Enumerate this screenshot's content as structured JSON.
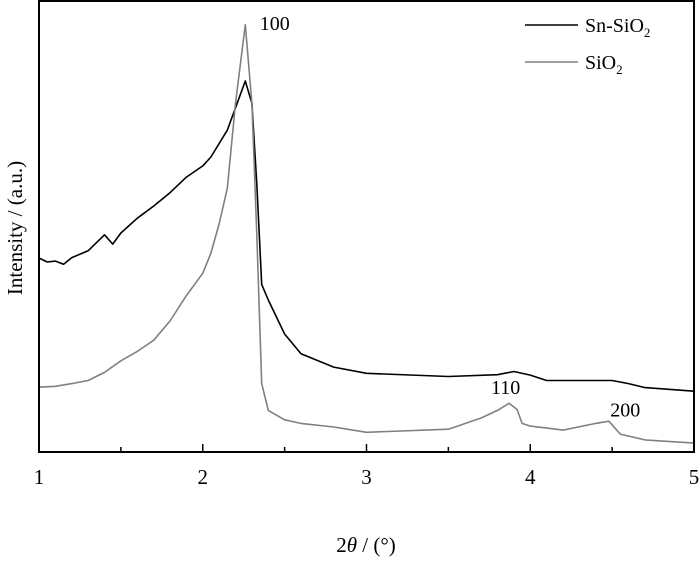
{
  "chart_data": {
    "type": "line",
    "xlabel_prefix": "2",
    "xlabel_symbol": "θ",
    "xlabel_suffix": " / (°)",
    "ylabel": "Intensity / (a.u.)",
    "xlim": [
      1,
      5
    ],
    "ylim": [
      0,
      100
    ],
    "xticks": [
      1,
      2,
      3,
      4,
      5
    ],
    "xticks_minor": [
      1.5,
      2.5,
      3.5,
      4.5
    ],
    "yticks": [],
    "grid": false,
    "legend_position": "top-right",
    "series": [
      {
        "name": "Sn-SiO2",
        "name_main": "Sn-SiO",
        "name_sub": "2",
        "color": "#000000",
        "x": [
          1.0,
          1.05,
          1.1,
          1.15,
          1.2,
          1.3,
          1.4,
          1.45,
          1.5,
          1.6,
          1.7,
          1.8,
          1.9,
          2.0,
          2.05,
          2.1,
          2.15,
          2.2,
          2.26,
          2.3,
          2.33,
          2.36,
          2.4,
          2.5,
          2.6,
          2.8,
          3.0,
          3.5,
          3.8,
          3.9,
          4.0,
          4.1,
          4.3,
          4.5,
          4.6,
          4.7,
          5.0
        ],
        "y": [
          43.4,
          42.5,
          42.7,
          42,
          43.5,
          45,
          48.6,
          46.5,
          49,
          52.3,
          55,
          58,
          61.5,
          64,
          66,
          69,
          72,
          77,
          83,
          78,
          60,
          37.5,
          34,
          26.4,
          22,
          19,
          17.6,
          16.9,
          17.3,
          18,
          17.2,
          16,
          16,
          16,
          15.3,
          14.4,
          13.6
        ]
      },
      {
        "name": "SiO2",
        "name_main": "SiO",
        "name_sub": "2",
        "color": "#808080",
        "x": [
          1.0,
          1.1,
          1.2,
          1.3,
          1.4,
          1.5,
          1.6,
          1.7,
          1.8,
          1.9,
          2.0,
          2.05,
          2.1,
          2.15,
          2.2,
          2.26,
          2.3,
          2.33,
          2.36,
          2.4,
          2.5,
          2.6,
          2.8,
          3.0,
          3.5,
          3.7,
          3.8,
          3.87,
          3.92,
          3.95,
          4.0,
          4.2,
          4.4,
          4.48,
          4.55,
          4.7,
          5.0
        ],
        "y": [
          14.5,
          14.7,
          15.3,
          16,
          17.8,
          20.4,
          22.5,
          25,
          29.3,
          35,
          40,
          44.5,
          51,
          59,
          78,
          95.6,
          78,
          48.6,
          15.3,
          9.3,
          7.2,
          6.4,
          5.6,
          4.4,
          5.1,
          7.6,
          9.3,
          10.9,
          9.5,
          6.4,
          5.8,
          4.9,
          6.4,
          6.9,
          4,
          2.7,
          2
        ]
      }
    ],
    "annotations": [
      {
        "text": "100",
        "x": 2.44,
        "y": 96
      },
      {
        "text": "110",
        "x": 3.85,
        "y": 14.5
      },
      {
        "text": "200",
        "x": 4.58,
        "y": 9.5
      }
    ]
  }
}
